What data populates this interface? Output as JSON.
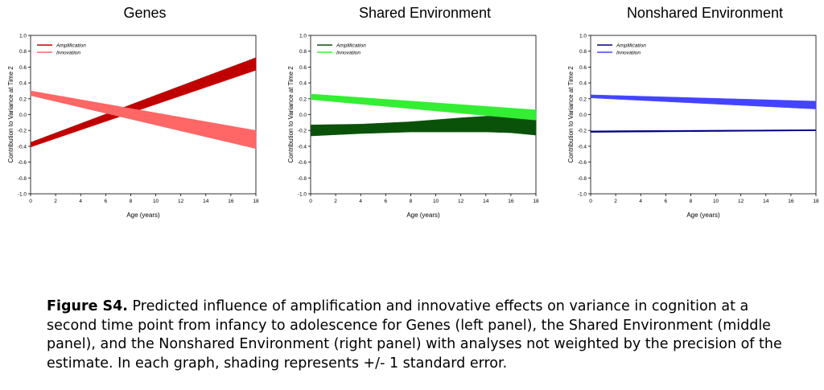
{
  "chart_data": [
    {
      "type": "area",
      "title": "Genes",
      "xlabel": "Age (years)",
      "ylabel": "Contribution to Variance at Time 2",
      "xlim": [
        0,
        18
      ],
      "ylim": [
        -1.0,
        1.0
      ],
      "x_ticks": [
        "0",
        "2",
        "4",
        "6",
        "8",
        "10",
        "12",
        "14",
        "16",
        "18"
      ],
      "y_ticks": [
        "-1.0",
        "-0.8",
        "-0.6",
        "-0.4",
        "-0.2",
        "0.0",
        "0.2",
        "0.4",
        "0.6",
        "0.8",
        "1.0"
      ],
      "legend": "top-left",
      "series": [
        {
          "name": "Amplification",
          "color": "#c00000",
          "x": [
            0,
            18
          ],
          "lower": [
            -0.41,
            0.56
          ],
          "upper": [
            -0.35,
            0.72
          ]
        },
        {
          "name": "Innovation",
          "color": "#ff6666",
          "x": [
            0,
            18
          ],
          "lower": [
            0.24,
            -0.43
          ],
          "upper": [
            0.3,
            -0.2
          ]
        }
      ]
    },
    {
      "type": "area",
      "title": "Shared Environment",
      "xlabel": "Age (years)",
      "ylabel": "Contribution to Variance at Time 2",
      "xlim": [
        0,
        18
      ],
      "ylim": [
        -1.0,
        1.0
      ],
      "x_ticks": [
        "0",
        "2",
        "4",
        "6",
        "8",
        "10",
        "12",
        "14",
        "16",
        "18"
      ],
      "y_ticks": [
        "-1.0",
        "-0.8",
        "-0.6",
        "-0.4",
        "-0.2",
        "0.0",
        "0.2",
        "0.4",
        "0.6",
        "0.8",
        "1.0"
      ],
      "legend": "top-left",
      "series": [
        {
          "name": "Amplification",
          "color": "#0a520a",
          "x": [
            0,
            4,
            8,
            12,
            14,
            16,
            18
          ],
          "lower": [
            -0.27,
            -0.24,
            -0.22,
            -0.22,
            -0.22,
            -0.23,
            -0.26
          ],
          "upper": [
            -0.13,
            -0.12,
            -0.09,
            -0.04,
            -0.02,
            -0.01,
            -0.04
          ]
        },
        {
          "name": "Innovation",
          "color": "#33ee33",
          "x": [
            0,
            18
          ],
          "lower": [
            0.19,
            -0.07
          ],
          "upper": [
            0.26,
            0.06
          ]
        }
      ]
    },
    {
      "type": "area",
      "title": "Nonshared Environment",
      "xlabel": "Age (years)",
      "ylabel": "Contribution to Variance at Time 2",
      "xlim": [
        0,
        18
      ],
      "ylim": [
        -1.0,
        1.0
      ],
      "x_ticks": [
        "0",
        "2",
        "4",
        "6",
        "8",
        "10",
        "12",
        "14",
        "16",
        "18"
      ],
      "y_ticks": [
        "-1.0",
        "-0.8",
        "-0.6",
        "-0.4",
        "-0.2",
        "0.0",
        "0.2",
        "0.4",
        "0.6",
        "0.8",
        "1.0"
      ],
      "legend": "top-left",
      "series": [
        {
          "name": "Amplification",
          "color": "#000080",
          "x": [
            0,
            18
          ],
          "lower": [
            -0.225,
            -0.205
          ],
          "upper": [
            -0.205,
            -0.19
          ]
        },
        {
          "name": "Innovation",
          "color": "#4444ff",
          "x": [
            0,
            18
          ],
          "lower": [
            0.21,
            0.07
          ],
          "upper": [
            0.25,
            0.17
          ]
        }
      ]
    }
  ],
  "caption": {
    "label": "Figure S4.",
    "text": " Predicted influence of amplification and innovative effects on variance in cognition at a second time point from infancy to adolescence for Genes (left panel), the Shared Environment (middle panel), and the Nonshared Environment (right panel) with analyses not weighted by the precision of the estimate. In each graph, shading represents +/- 1 standard error."
  }
}
